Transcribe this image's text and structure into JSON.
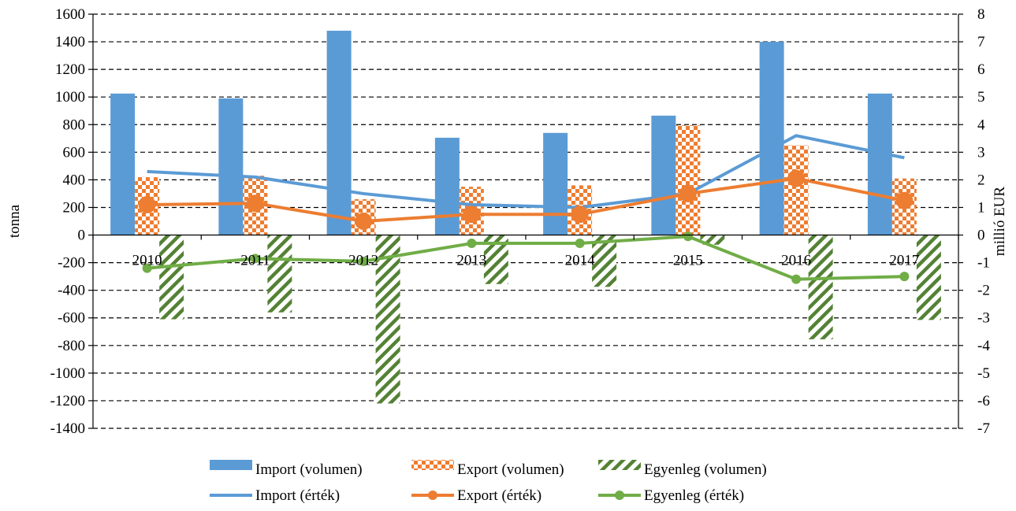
{
  "chart_data": {
    "type": "bar",
    "categories": [
      "2010",
      "2011",
      "2012",
      "2013",
      "2014",
      "2015",
      "2016",
      "2017"
    ],
    "bar_series": [
      {
        "name": "Import (volumen)",
        "values": [
          1025,
          990,
          1480,
          705,
          740,
          865,
          1400,
          1025
        ],
        "color": "#5b9bd5",
        "pattern": "solid"
      },
      {
        "name": "Export (volumen)",
        "values": [
          420,
          430,
          260,
          350,
          360,
          795,
          650,
          410
        ],
        "color": "#ed7d31",
        "pattern": "checker"
      },
      {
        "name": "Egyenleg (volumen)",
        "values": [
          -610,
          -560,
          -1220,
          -355,
          -375,
          -70,
          -755,
          -615
        ],
        "color": "#548235",
        "pattern": "diagonal"
      }
    ],
    "line_series": [
      {
        "name": "Import (érték)",
        "values": [
          2.3,
          2.1,
          1.5,
          1.1,
          1.0,
          1.5,
          3.6,
          2.8
        ],
        "color": "#5b9bd5",
        "markers": false
      },
      {
        "name": "Export (érték)",
        "values": [
          1.1,
          1.15,
          0.5,
          0.75,
          0.75,
          1.5,
          2.05,
          1.25
        ],
        "color": "#ed7d31",
        "markers": true
      },
      {
        "name": "Egyenleg (érték)",
        "values": [
          -1.2,
          -0.85,
          -0.95,
          -0.3,
          -0.3,
          -0.05,
          -1.6,
          -1.5
        ],
        "color": "#70ad47",
        "markers": true
      }
    ],
    "ylabel": "tonna",
    "y2label": "millió EUR",
    "ylim": [
      -1400,
      1600
    ],
    "y2lim": [
      -7,
      8
    ],
    "yticks": [
      "1600",
      "1400",
      "1200",
      "1000",
      "800",
      "600",
      "400",
      "200",
      "0",
      "-200",
      "-400",
      "-600",
      "-800",
      "-1000",
      "-1200",
      "-1400"
    ],
    "y2ticks": [
      "8",
      "7",
      "6",
      "5",
      "4",
      "3",
      "2",
      "1",
      "0",
      "-1",
      "-2",
      "-3",
      "-4",
      "-5",
      "-6",
      "-7"
    ],
    "grid": "horizontal-dashed",
    "legend_position": "bottom"
  }
}
